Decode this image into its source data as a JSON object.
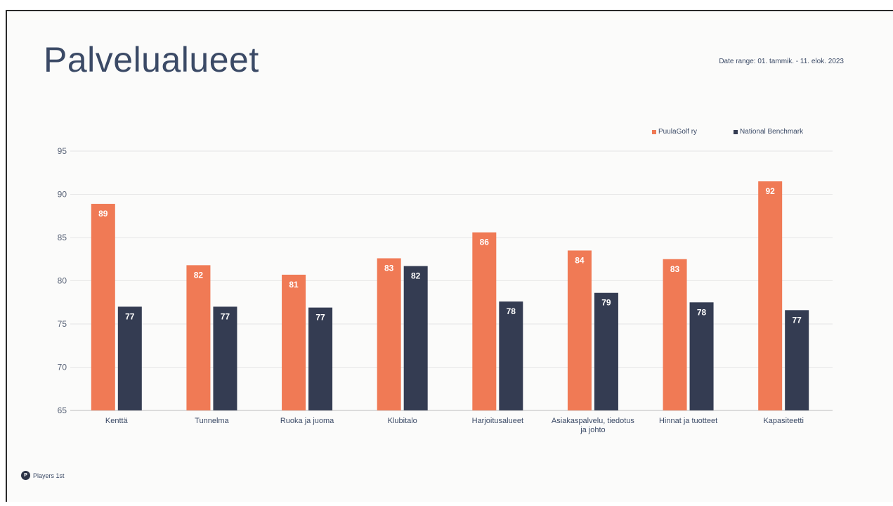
{
  "slide": {
    "title": "Palvelualueet",
    "date_range": "Date range: 01. tammik. - 11. elok. 2023",
    "footer_brand": "Players 1st",
    "footer_logo_glyph": "P"
  },
  "colors": {
    "club": "#f07a55",
    "benchmark": "#343c52",
    "grid": "#e6e6e6",
    "text": "#3b4a66"
  },
  "chart_data": {
    "type": "bar",
    "categories": [
      "Kenttä",
      "Tunnelma",
      "Ruoka ja juoma",
      "Klubitalo",
      "Harjoitusalueet",
      "Asiakaspalvelu, tiedotus ja johto",
      "Hinnat ja tuotteet",
      "Kapasiteetti"
    ],
    "category_lines": [
      [
        "Kenttä"
      ],
      [
        "Tunnelma"
      ],
      [
        "Ruoka ja juoma"
      ],
      [
        "Klubitalo"
      ],
      [
        "Harjoitusalueet"
      ],
      [
        "Asiakaspalvelu, tiedotus",
        "ja johto"
      ],
      [
        "Hinnat ja tuotteet"
      ],
      [
        "Kapasiteetti"
      ]
    ],
    "series": [
      {
        "name": "PuulaGolf ry",
        "values": [
          88.9,
          81.8,
          80.7,
          82.6,
          85.6,
          83.5,
          82.5,
          91.5
        ],
        "labels": [
          "89",
          "82",
          "81",
          "83",
          "86",
          "84",
          "83",
          "92"
        ]
      },
      {
        "name": "National Benchmark",
        "values": [
          77.0,
          77.0,
          76.9,
          81.7,
          77.6,
          78.6,
          77.5,
          76.6
        ],
        "labels": [
          "77",
          "77",
          "77",
          "82",
          "78",
          "79",
          "78",
          "77"
        ]
      }
    ],
    "ylim": [
      65,
      95
    ],
    "yticks": [
      65,
      70,
      75,
      80,
      85,
      90,
      95
    ],
    "grid": true,
    "legend_position": "top-right"
  }
}
